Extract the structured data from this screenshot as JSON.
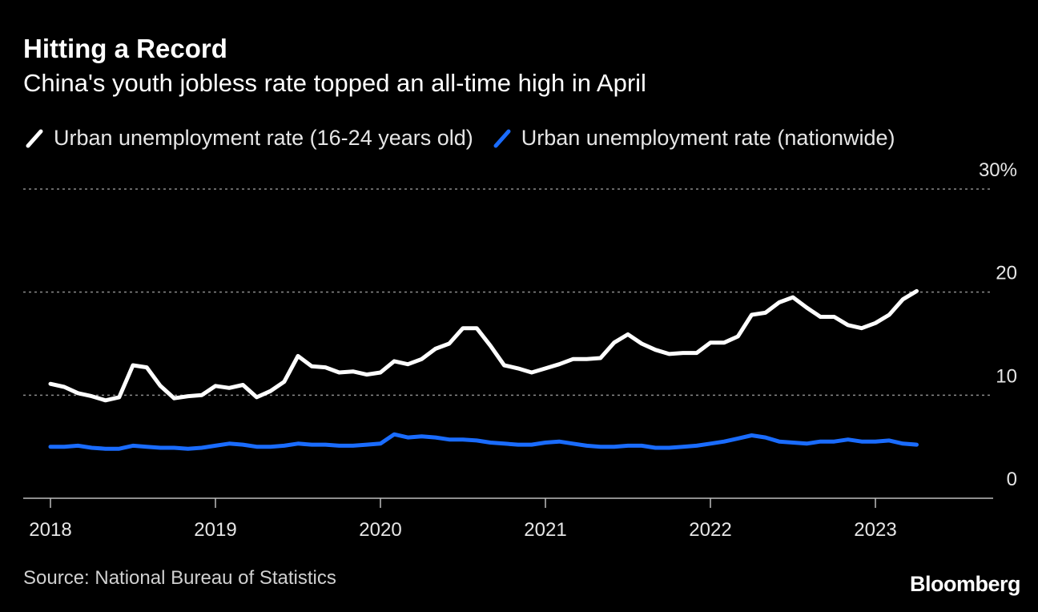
{
  "title": "Hitting a Record",
  "subtitle": "China's youth jobless rate topped an all-time high in April",
  "source": "Source: National Bureau of Statistics",
  "logo": "Bloomberg",
  "colors": {
    "background": "#000000",
    "youth": "#ffffff",
    "nationwide": "#1a6cff",
    "grid": "#8a8a8a"
  },
  "chart_data": {
    "type": "line",
    "title": "Hitting a Record",
    "subtitle": "China's youth jobless rate topped an all-time high in April",
    "xlabel": "",
    "ylabel": "",
    "ylim": [
      0,
      30
    ],
    "y_ticks": [
      {
        "value": 30,
        "label": "30%"
      },
      {
        "value": 20,
        "label": "20"
      },
      {
        "value": 10,
        "label": "10"
      },
      {
        "value": 0,
        "label": "0"
      }
    ],
    "x_ticks": [
      "2018",
      "2019",
      "2020",
      "2021",
      "2022",
      "2023"
    ],
    "x_start": "2018-01",
    "grid": true,
    "legend_position": "top-left",
    "series": [
      {
        "name": "Urban unemployment rate (16-24 years old)",
        "color": "#ffffff",
        "values": [
          11.1,
          10.8,
          10.2,
          9.9,
          9.5,
          9.8,
          12.9,
          12.7,
          10.9,
          9.7,
          9.9,
          10.0,
          10.9,
          10.7,
          11.0,
          9.8,
          10.4,
          11.3,
          13.8,
          12.8,
          12.7,
          12.2,
          12.3,
          12.0,
          12.2,
          13.3,
          13.0,
          13.5,
          14.5,
          15.0,
          16.5,
          16.5,
          14.8,
          12.9,
          12.6,
          12.2,
          12.6,
          13.0,
          13.5,
          13.5,
          13.6,
          15.1,
          15.9,
          15.0,
          14.4,
          14.0,
          14.1,
          14.1,
          15.1,
          15.1,
          15.7,
          17.8,
          18.0,
          19.0,
          19.5,
          18.5,
          17.6,
          17.6,
          16.8,
          16.5,
          17.0,
          17.8,
          19.3,
          20.1
        ]
      },
      {
        "name": "Urban unemployment rate (nationwide)",
        "color": "#1a6cff",
        "values": [
          5.0,
          5.0,
          5.1,
          4.9,
          4.8,
          4.8,
          5.1,
          5.0,
          4.9,
          4.9,
          4.8,
          4.9,
          5.1,
          5.3,
          5.2,
          5.0,
          5.0,
          5.1,
          5.3,
          5.2,
          5.2,
          5.1,
          5.1,
          5.2,
          5.3,
          6.2,
          5.9,
          6.0,
          5.9,
          5.7,
          5.7,
          5.6,
          5.4,
          5.3,
          5.2,
          5.2,
          5.4,
          5.5,
          5.3,
          5.1,
          5.0,
          5.0,
          5.1,
          5.1,
          4.9,
          4.9,
          5.0,
          5.1,
          5.3,
          5.5,
          5.8,
          6.1,
          5.9,
          5.5,
          5.4,
          5.3,
          5.5,
          5.5,
          5.7,
          5.5,
          5.5,
          5.6,
          5.3,
          5.2
        ]
      }
    ]
  }
}
